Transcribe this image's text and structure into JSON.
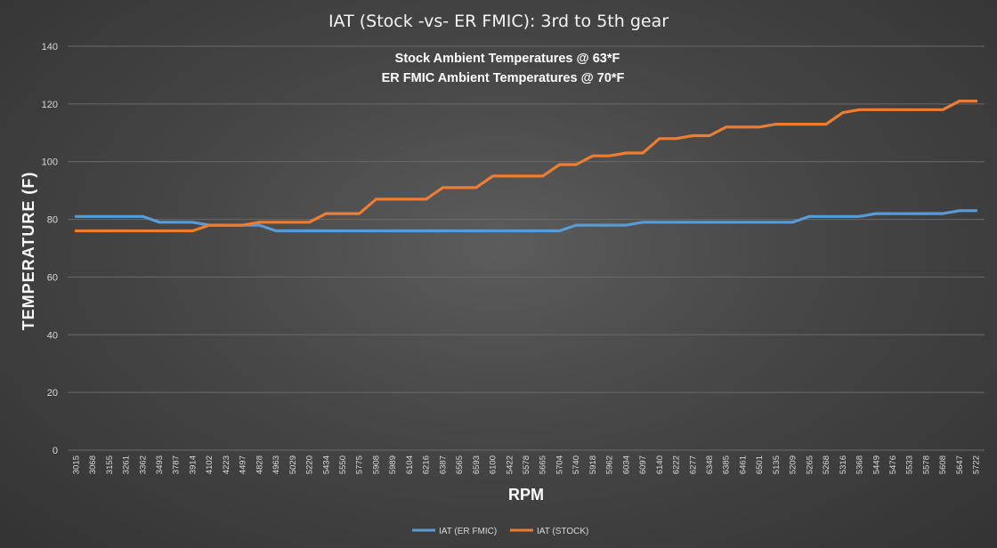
{
  "chart_data": {
    "type": "line",
    "title": "IAT (Stock -vs- ER FMIC): 3rd to 5th gear",
    "annotations": [
      "Stock Ambient Temperatures @ 63*F",
      "ER FMIC Ambient Temperatures @ 70*F"
    ],
    "xlabel": "RPM",
    "ylabel": "TEMPERATURE (F)",
    "ylim": [
      0,
      140
    ],
    "yticks": [
      0,
      20,
      40,
      60,
      80,
      100,
      120,
      140
    ],
    "grid": true,
    "legend_position": "bottom",
    "categories": [
      "3015",
      "3068",
      "3155",
      "3261",
      "3362",
      "3493",
      "3787",
      "3914",
      "4102",
      "4223",
      "4497",
      "4828",
      "4963",
      "5029",
      "5220",
      "5434",
      "5550",
      "5775",
      "5908",
      "5989",
      "6104",
      "6216",
      "6387",
      "6565",
      "6593",
      "6100",
      "5422",
      "5578",
      "5665",
      "5704",
      "5740",
      "5918",
      "5962",
      "6034",
      "6097",
      "6140",
      "6222",
      "6277",
      "6348",
      "6385",
      "6461",
      "6501",
      "5135",
      "5209",
      "5265",
      "5268",
      "5316",
      "5368",
      "5449",
      "5476",
      "5533",
      "5578",
      "5608",
      "5647",
      "5722"
    ],
    "series": [
      {
        "name": "IAT (ER FMIC)",
        "color": "#5b9bd5",
        "values": [
          81,
          81,
          81,
          81,
          81,
          79,
          79,
          79,
          78,
          78,
          78,
          78,
          76,
          76,
          76,
          76,
          76,
          76,
          76,
          76,
          76,
          76,
          76,
          76,
          76,
          76,
          76,
          76,
          76,
          76,
          78,
          78,
          78,
          78,
          79,
          79,
          79,
          79,
          79,
          79,
          79,
          79,
          79,
          79,
          81,
          81,
          81,
          81,
          82,
          82,
          82,
          82,
          82,
          83,
          83
        ]
      },
      {
        "name": "IAT (STOCK)",
        "color": "#ed7d31",
        "values": [
          76,
          76,
          76,
          76,
          76,
          76,
          76,
          76,
          78,
          78,
          78,
          79,
          79,
          79,
          79,
          82,
          82,
          82,
          87,
          87,
          87,
          87,
          91,
          91,
          91,
          95,
          95,
          95,
          95,
          99,
          99,
          102,
          102,
          103,
          103,
          108,
          108,
          109,
          109,
          112,
          112,
          112,
          113,
          113,
          113,
          113,
          117,
          118,
          118,
          118,
          118,
          118,
          118,
          121,
          121
        ]
      }
    ]
  }
}
